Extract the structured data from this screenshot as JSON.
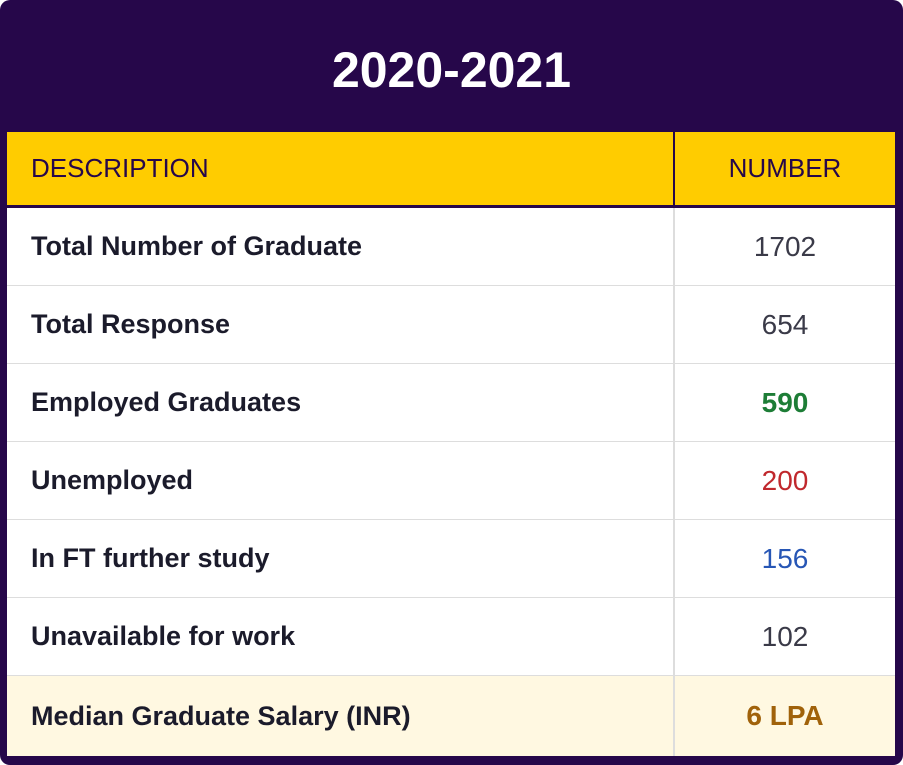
{
  "title": "2020-2021",
  "table": {
    "header": [
      "DESCRIPTION",
      "NUMBER"
    ],
    "rows": [
      [
        "Total Number of Graduate",
        1702
      ],
      [
        "Total Response",
        654
      ],
      [
        "Employed Graduates",
        590
      ],
      [
        "Unemployed",
        200
      ],
      [
        "In FT further study",
        156
      ],
      [
        "Unavailable for work",
        102
      ],
      [
        "Median Graduate Salary (INR)",
        "6 LPA"
      ]
    ]
  }
}
